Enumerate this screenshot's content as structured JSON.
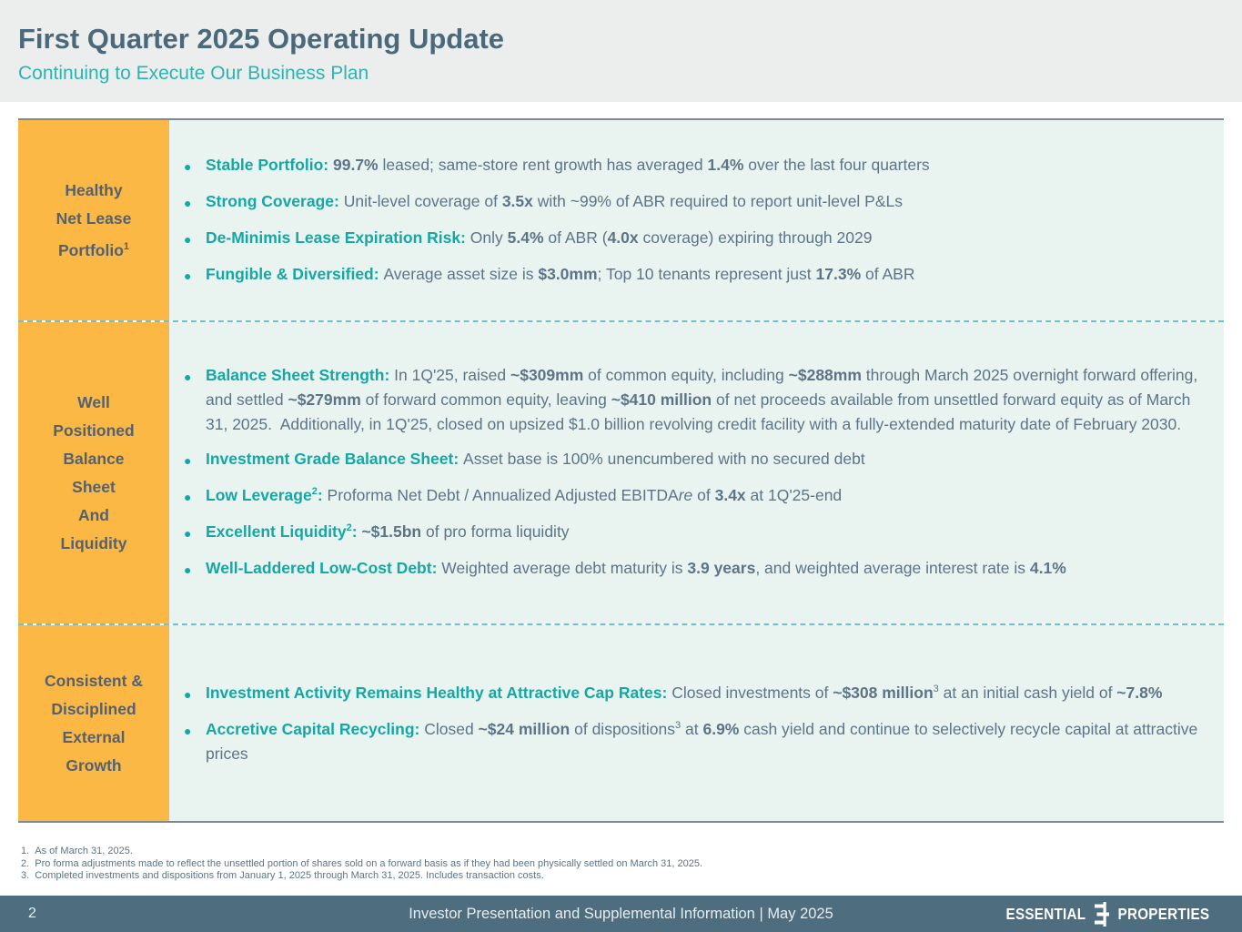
{
  "colors": {
    "white": "#FFFFFF",
    "header_band": "#ECEDED",
    "title": "#4A6A7B",
    "subtitle": "#2BB5B2",
    "yellow": "#FBB844",
    "label_text": "#566170",
    "mint": "#E9F4F1",
    "teal": "#15A7A4",
    "body": "#5D7487",
    "border": "#7D8A90",
    "dashed": "#70C0D3",
    "footer_bg": "#4E6D7E",
    "footer_text": "#E8EDEF",
    "footnote": "#5D7487"
  },
  "header": {
    "title": "First Quarter 2025 Operating Update",
    "subtitle": "Continuing to Execute Our Business Plan"
  },
  "board": {
    "rows": [
      {
        "label_lines": [
          "Healthy",
          "Net Lease",
          "Portfolio"
        ],
        "label_sup": "1",
        "bullets": [
          {
            "segments": [
              {
                "t": "Stable Portfolio: ",
                "b": true,
                "c": "teal"
              },
              {
                "t": "99.7%",
                "b": true
              },
              {
                "t": " leased; same-store rent growth has averaged "
              },
              {
                "t": "1.4%",
                "b": true
              },
              {
                "t": " over the last four quarters"
              }
            ]
          },
          {
            "segments": [
              {
                "t": "Strong Coverage: ",
                "b": true,
                "c": "teal"
              },
              {
                "t": "Unit-level coverage of "
              },
              {
                "t": "3.5x",
                "b": true
              },
              {
                "t": " with ~99% of ABR required to report unit-level P&Ls"
              }
            ]
          },
          {
            "segments": [
              {
                "t": "De-Minimis Lease Expiration Risk: ",
                "b": true,
                "c": "teal"
              },
              {
                "t": "Only "
              },
              {
                "t": "5.4%",
                "b": true
              },
              {
                "t": " of ABR ("
              },
              {
                "t": "4.0x",
                "b": true
              },
              {
                "t": " coverage) expiring through 2029"
              }
            ]
          },
          {
            "segments": [
              {
                "t": "Fungible & Diversified: ",
                "b": true,
                "c": "teal"
              },
              {
                "t": "Average asset size is "
              },
              {
                "t": "$3.0mm",
                "b": true
              },
              {
                "t": "; Top 10 tenants represent just "
              },
              {
                "t": "17.3%",
                "b": true
              },
              {
                "t": " of ABR"
              }
            ]
          }
        ]
      },
      {
        "label_lines": [
          "Well",
          "Positioned",
          "Balance",
          "Sheet",
          "And",
          "Liquidity"
        ],
        "label_sup": "",
        "bullets": [
          {
            "segments": [
              {
                "t": "Balance Sheet Strength: ",
                "b": true,
                "c": "teal"
              },
              {
                "t": "In 1Q'25, raised "
              },
              {
                "t": "~$309mm",
                "b": true
              },
              {
                "t": " of common equity, including "
              },
              {
                "t": "~$288mm",
                "b": true
              },
              {
                "t": " through March 2025 overnight forward offering, and settled "
              },
              {
                "t": "~$279mm",
                "b": true
              },
              {
                "t": " of forward common equity, leaving "
              },
              {
                "t": "~$410 million",
                "b": true
              },
              {
                "t": " of net proceeds available from unsettled forward equity as of March 31, 2025.  Additionally, in 1Q'25, closed on upsized $1.0 billion revolving credit facility with a fully-extended maturity date of February 2030."
              }
            ]
          },
          {
            "segments": [
              {
                "t": "Investment Grade Balance Sheet: ",
                "b": true,
                "c": "teal"
              },
              {
                "t": "Asset base is 100% unencumbered with no secured debt"
              }
            ]
          },
          {
            "segments": [
              {
                "t": "Low Leverage",
                "b": true,
                "c": "teal"
              },
              {
                "t": "2",
                "b": true,
                "c": "teal",
                "sup": true
              },
              {
                "t": ": ",
                "b": true,
                "c": "teal"
              },
              {
                "t": "Proforma Net Debt / Annualized Adjusted EBITDA"
              },
              {
                "t": "re",
                "i": true
              },
              {
                "t": " of "
              },
              {
                "t": "3.4x",
                "b": true
              },
              {
                "t": " at 1Q'25-end"
              }
            ]
          },
          {
            "segments": [
              {
                "t": "Excellent Liquidity",
                "b": true,
                "c": "teal"
              },
              {
                "t": "2",
                "b": true,
                "c": "teal",
                "sup": true
              },
              {
                "t": ": ",
                "b": true,
                "c": "teal"
              },
              {
                "t": "~$1.5bn",
                "b": true
              },
              {
                "t": " of pro forma liquidity"
              }
            ]
          },
          {
            "segments": [
              {
                "t": "Well-Laddered Low-Cost Debt: ",
                "b": true,
                "c": "teal"
              },
              {
                "t": "Weighted average debt maturity is "
              },
              {
                "t": "3.9 years",
                "b": true
              },
              {
                "t": ", and weighted average interest rate is "
              },
              {
                "t": "4.1%",
                "b": true
              }
            ]
          }
        ]
      },
      {
        "label_lines": [
          "Consistent &",
          "Disciplined",
          "External",
          "Growth"
        ],
        "label_sup": "",
        "bullets": [
          {
            "segments": [
              {
                "t": "Investment Activity Remains Healthy at Attractive Cap Rates: ",
                "b": true,
                "c": "teal"
              },
              {
                "t": "Closed investments of "
              },
              {
                "t": "~$308 million",
                "b": true
              },
              {
                "t": "3",
                "sup": true
              },
              {
                "t": " at an initial cash yield of "
              },
              {
                "t": "~7.8%",
                "b": true
              }
            ]
          },
          {
            "segments": [
              {
                "t": "Accretive Capital Recycling: ",
                "b": true,
                "c": "teal"
              },
              {
                "t": "Closed "
              },
              {
                "t": "~$24 million",
                "b": true
              },
              {
                "t": " of dispositions"
              },
              {
                "t": "3",
                "sup": true
              },
              {
                "t": " at "
              },
              {
                "t": "6.9%",
                "b": true
              },
              {
                "t": " cash yield and continue to selectively recycle capital at attractive prices"
              }
            ]
          }
        ]
      }
    ]
  },
  "footnotes": [
    "1.  As of March 31, 2025.",
    "2.  Pro forma adjustments made to reflect the unsettled portion of shares sold on a forward basis as if they had been physically settled on March 31, 2025.",
    "3.  Completed investments and dispositions from January 1, 2025 through March 31, 2025. Includes transaction costs."
  ],
  "footer": {
    "page_number": "2",
    "caption": "Investor Presentation and Supplemental Information | May 2025",
    "logo": {
      "left": "ESSENTIAL",
      "right": "PROPERTIES"
    }
  }
}
